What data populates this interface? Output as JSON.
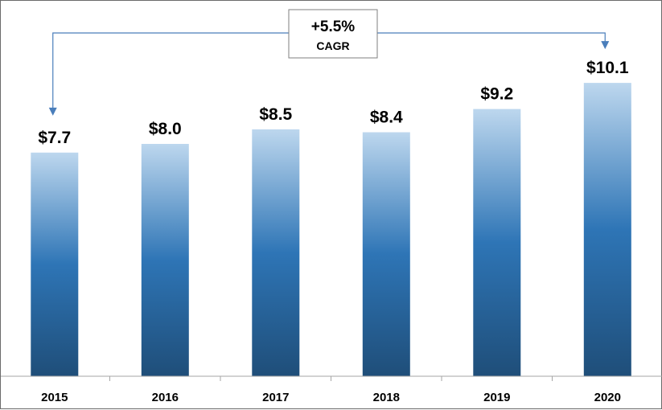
{
  "chart_data": {
    "type": "bar",
    "categories": [
      "2015",
      "2016",
      "2017",
      "2018",
      "2019",
      "2020"
    ],
    "values": [
      7.7,
      8.0,
      8.5,
      8.4,
      9.2,
      10.1
    ],
    "data_labels": [
      "$7.7",
      "$8.0",
      "$8.5",
      "$8.4",
      "$9.2",
      "$10.1"
    ],
    "title": "",
    "xlabel": "",
    "ylabel": "",
    "ylim": [
      0,
      12.65
    ],
    "grid": false,
    "legend": "none",
    "annotation": {
      "value": "+5.5%",
      "label": "CAGR",
      "from": "2015",
      "to": "2020"
    }
  },
  "colors": {
    "bar_top": "#bdd7ee",
    "bar_mid": "#2e75b6",
    "bar_bottom": "#1f4e79",
    "arrow": "#4a7ebb",
    "axis": "#a6a6a6"
  }
}
